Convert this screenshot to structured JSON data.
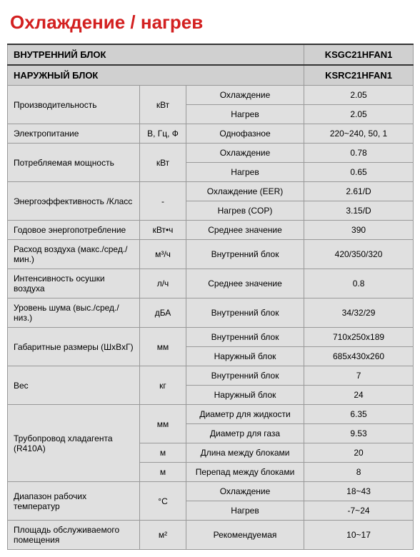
{
  "title": "Охлаждение / нагрев",
  "header": {
    "indoor_label": "ВНУТРЕННИЙ БЛОК",
    "indoor_val": "KSGC21HFAN1",
    "outdoor_label": "НАРУЖНЫЙ БЛОК",
    "outdoor_val": "KSRC21HFAN1"
  },
  "rows": {
    "perf": {
      "label": "Производительность",
      "unit": "кВт",
      "cool": "Охлаждение",
      "cool_v": "2.05",
      "heat": "Нагрев",
      "heat_v": "2.05"
    },
    "power": {
      "label": "Электропитание",
      "unit": "В, Гц, Ф",
      "desc": "Однофазное",
      "val": "220~240, 50, 1"
    },
    "consum": {
      "label": "Потребляемая мощность",
      "unit": "кВт",
      "cool": "Охлаждение",
      "cool_v": "0.78",
      "heat": "Нагрев",
      "heat_v": "0.65"
    },
    "eff": {
      "label": "Энергоэффективность /Класс",
      "unit": "-",
      "cool": "Охлаждение (EER)",
      "cool_v": "2.61/D",
      "heat": "Нагрев (COP)",
      "heat_v": "3.15/D"
    },
    "annual": {
      "label": "Годовое энергопотребление",
      "unit": "кВт•ч",
      "desc": "Среднее значение",
      "val": "390"
    },
    "airflow": {
      "label": "Расход воздуха (макс./сред./мин.)",
      "unit": "м³/ч",
      "desc": "Внутренний блок",
      "val": "420/350/320"
    },
    "dehum": {
      "label": "Интенсивность осушки воздуха",
      "unit": "л/ч",
      "desc": "Среднее значение",
      "val": "0.8"
    },
    "noise": {
      "label": "Уровень шума (выс./сред./низ.)",
      "unit": "дБА",
      "desc": "Внутренний блок",
      "val": "34/32/29"
    },
    "dims": {
      "label": "Габаритные размеры (ШxВxГ)",
      "unit": "мм",
      "in": "Внутренний блок",
      "in_v": "710x250x189",
      "out": "Наружный блок",
      "out_v": "685x430x260"
    },
    "weight": {
      "label": "Вес",
      "unit": "кг",
      "in": "Внутренний блок",
      "in_v": "7",
      "out": "Наружный блок",
      "out_v": "24"
    },
    "pipe": {
      "label": "Трубопровод хладагента (R410A)",
      "u1": "мм",
      "u2": "м",
      "liq": "Диаметр для жидкости",
      "liq_v": "6.35",
      "gas": "Диаметр для газа",
      "gas_v": "9.53",
      "len": "Длина между блоками",
      "len_v": "20",
      "drop": "Перепад между блоками",
      "drop_v": "8"
    },
    "temp": {
      "label": "Диапазон рабочих температур",
      "unit": "°С",
      "cool": "Охлаждение",
      "cool_v": "18~43",
      "heat": "Нагрев",
      "heat_v": "-7~24"
    },
    "area": {
      "label": "Площадь обслуживаемого помещения",
      "unit": "м²",
      "desc": "Рекомендуемая",
      "val": "10~17"
    }
  },
  "style": {
    "title_color": "#d32020",
    "bg_cell": "#e0e0e0",
    "bg_header": "#d0d0d0",
    "border": "#999999",
    "title_fontsize": 26,
    "cell_fontsize": 12
  }
}
